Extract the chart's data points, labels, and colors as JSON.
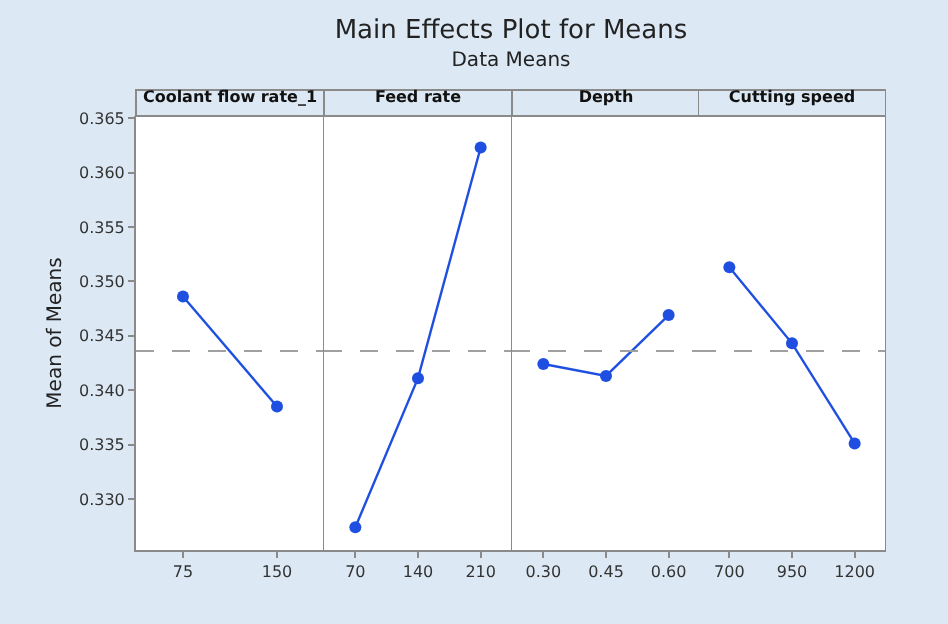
{
  "chart_data": [
    {
      "type": "line",
      "title": "Coolant flow rate_1",
      "annotations": [
        "Main Effects Plot for Means",
        "Data Means"
      ],
      "ylabel": "Mean of Means",
      "categories": [
        "75",
        "150"
      ],
      "series": [
        {
          "color": "#1f4fe0",
          "values": [
            0.3486,
            0.3385
          ]
        }
      ],
      "ylim": [
        0.3253,
        0.3652
      ],
      "yticks": [
        {
          "value": 0.33,
          "label": "0.330"
        },
        {
          "value": 0.335,
          "label": "0.335"
        },
        {
          "value": 0.34,
          "label": "0.340"
        },
        {
          "value": 0.345,
          "label": "0.345"
        },
        {
          "value": 0.35,
          "label": "0.350"
        },
        {
          "value": 0.355,
          "label": "0.355"
        },
        {
          "value": 0.36,
          "label": "0.360"
        },
        {
          "value": 0.365,
          "label": "0.365"
        }
      ],
      "ref_lines": [
        {
          "axis": "y",
          "value": 0.3436,
          "color": "#a0a0a0",
          "line_style": "dashed"
        }
      ],
      "marker": "circle",
      "line_style": "solid",
      "grid": false
    },
    {
      "type": "line",
      "title": "Feed rate",
      "categories": [
        "70",
        "140",
        "210"
      ],
      "series": [
        {
          "color": "#1f4fe0",
          "values": [
            0.3274,
            0.3411,
            0.3623
          ]
        }
      ],
      "ylim": [
        0.3253,
        0.3652
      ],
      "ref_lines": [
        {
          "axis": "y",
          "value": 0.3436,
          "color": "#a0a0a0",
          "line_style": "dashed"
        }
      ],
      "marker": "circle",
      "line_style": "solid",
      "grid": false,
      "tick_labels": "x"
    },
    {
      "type": "line",
      "title": "Depth",
      "categories": [
        "0.30",
        "0.45",
        "0.60"
      ],
      "series": [
        {
          "color": "#1f4fe0",
          "values": [
            0.3424,
            0.3413,
            0.3469
          ]
        }
      ],
      "ylim": [
        0.3253,
        0.3652
      ],
      "ref_lines": [
        {
          "axis": "y",
          "value": 0.3436,
          "color": "#a0a0a0",
          "line_style": "dashed"
        }
      ],
      "marker": "circle",
      "line_style": "solid",
      "grid": false,
      "tick_labels": "x"
    },
    {
      "type": "line",
      "title": "Cutting speed",
      "categories": [
        "700",
        "950",
        "1200"
      ],
      "series": [
        {
          "color": "#1f4fe0",
          "values": [
            0.3513,
            0.3443,
            0.3351
          ]
        }
      ],
      "ylim": [
        0.3253,
        0.3652
      ],
      "ref_lines": [
        {
          "axis": "y",
          "value": 0.3436,
          "color": "#a0a0a0",
          "line_style": "dashed"
        }
      ],
      "marker": "circle",
      "line_style": "solid",
      "grid": false,
      "tick_labels": "x"
    }
  ]
}
